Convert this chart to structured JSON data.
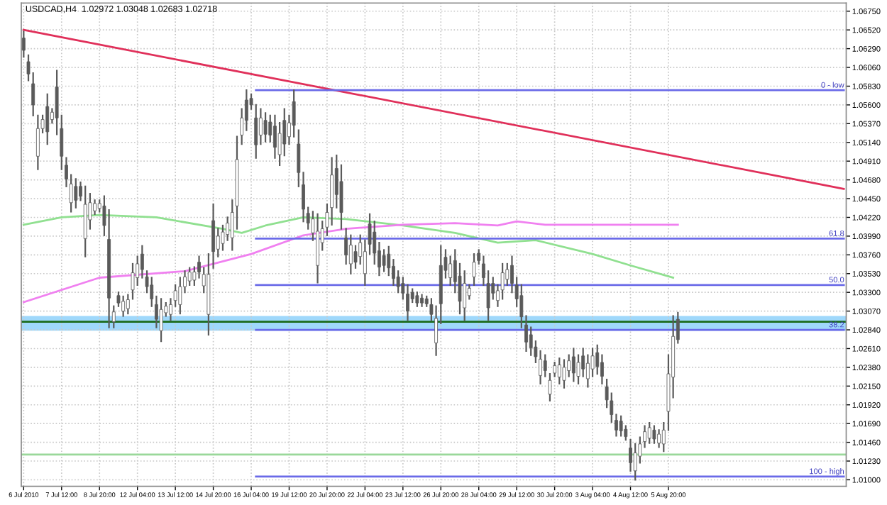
{
  "chart_data": {
    "type": "candlestick",
    "title": "USDCAD,H4  1.02972 1.03048 1.02683 1.02718",
    "color": "#5a5a5a",
    "grid": true,
    "categories": [
      "6 Jul 2010",
      null,
      null,
      null,
      null,
      null,
      null,
      null,
      "7 Jul 12:00",
      null,
      null,
      null,
      null,
      null,
      null,
      null,
      "8 Jul 20:00",
      null,
      null,
      null,
      null,
      null,
      null,
      null,
      "12 Jul 04:00",
      null,
      null,
      null,
      null,
      null,
      null,
      null,
      "13 Jul 12:00",
      null,
      null,
      null,
      null,
      null,
      null,
      null,
      "14 Jul 20:00",
      null,
      null,
      null,
      null,
      null,
      null,
      null,
      "16 Jul 04:00",
      null,
      null,
      null,
      null,
      null,
      null,
      null,
      "19 Jul 12:00",
      null,
      null,
      null,
      null,
      null,
      null,
      null,
      "20 Jul 20:00",
      null,
      null,
      null,
      null,
      null,
      null,
      null,
      "22 Jul 04:00",
      null,
      null,
      null,
      null,
      null,
      null,
      null,
      "23 Jul 12:00",
      null,
      null,
      null,
      null,
      null,
      null,
      null,
      "26 Jul 20:00",
      null,
      null,
      null,
      null,
      null,
      null,
      null,
      "28 Jul 04:00",
      null,
      null,
      null,
      null,
      null,
      null,
      null,
      "29 Jul 12:00",
      null,
      null,
      null,
      null,
      null,
      null,
      null,
      "30 Jul 20:00",
      null,
      null,
      null,
      null,
      null,
      null,
      null,
      "3 Aug 04:00",
      null,
      null,
      null,
      null,
      null,
      null,
      null,
      "4 Aug 12:00",
      null,
      null,
      null,
      null,
      null,
      null,
      null,
      "5 Aug 20:00",
      null,
      null,
      null,
      null,
      null,
      null,
      null,
      null,
      null,
      null,
      null,
      null,
      null,
      null,
      null,
      null,
      null,
      null,
      null,
      null,
      null,
      null,
      null,
      null,
      null,
      null,
      null,
      null,
      null,
      null,
      null,
      null,
      null,
      null,
      null,
      null,
      null
    ],
    "ohlc": [
      [
        1.0642,
        1.065,
        1.0619,
        1.0627
      ],
      [
        1.0613,
        1.0621,
        1.059,
        1.0598
      ],
      [
        1.0586,
        1.0599,
        1.0547,
        1.056
      ],
      [
        1.0497,
        1.0547,
        1.0481,
        1.0531
      ],
      [
        1.0531,
        1.0547,
        1.0526,
        1.0542
      ],
      [
        1.0558,
        1.0573,
        1.0512,
        1.0527
      ],
      [
        1.0542,
        1.0555,
        1.0538,
        1.0551
      ],
      [
        1.0582,
        1.0602,
        1.0524,
        1.0544
      ],
      [
        1.0531,
        1.0547,
        1.0481,
        1.0497
      ],
      [
        1.0486,
        1.0495,
        1.046,
        1.0469
      ],
      [
        1.044,
        1.0474,
        1.0429,
        1.0463
      ],
      [
        1.046,
        1.0469,
        1.0434,
        1.0443
      ],
      [
        1.046,
        1.0465,
        1.0443,
        1.0448
      ],
      [
        1.0396,
        1.046,
        1.0374,
        1.0438
      ],
      [
        1.0419,
        1.0451,
        1.0408,
        1.044
      ],
      [
        1.043,
        1.0443,
        1.0426,
        1.0439
      ],
      [
        1.0433,
        1.0443,
        1.0429,
        1.0439
      ],
      [
        1.0436,
        1.0448,
        1.04,
        1.0412
      ],
      [
        1.0395,
        1.0431,
        1.0287,
        1.0323
      ],
      [
        1.0294,
        1.0313,
        1.0287,
        1.0306
      ],
      [
        1.0326,
        1.033,
        1.0313,
        1.0317
      ],
      [
        1.0307,
        1.0325,
        1.0301,
        1.0319
      ],
      [
        1.031,
        1.0327,
        1.0304,
        1.0321
      ],
      [
        1.0333,
        1.0365,
        1.0322,
        1.0354
      ],
      [
        1.0348,
        1.0374,
        1.0339,
        1.0365
      ],
      [
        1.0377,
        1.0387,
        1.0348,
        1.0358
      ],
      [
        1.0349,
        1.0356,
        1.033,
        1.0337
      ],
      [
        1.0339,
        1.0348,
        1.0313,
        1.0322
      ],
      [
        1.0315,
        1.0325,
        1.0287,
        1.0297
      ],
      [
        1.0283,
        1.0322,
        1.027,
        1.0309
      ],
      [
        1.0305,
        1.0317,
        1.0301,
        1.0313
      ],
      [
        1.0303,
        1.0322,
        1.0296,
        1.0315
      ],
      [
        1.032,
        1.0339,
        1.0313,
        1.0332
      ],
      [
        1.0315,
        1.0348,
        1.0304,
        1.0337
      ],
      [
        1.0337,
        1.0356,
        1.033,
        1.0349
      ],
      [
        1.0344,
        1.036,
        1.0339,
        1.0355
      ],
      [
        1.0345,
        1.0361,
        1.0339,
        1.0355
      ],
      [
        1.0367,
        1.0374,
        1.0348,
        1.0355
      ],
      [
        1.0338,
        1.036,
        1.033,
        1.0352
      ],
      [
        1.0303,
        1.0377,
        1.0278,
        1.0352
      ],
      [
        1.0418,
        1.0438,
        1.036,
        1.038
      ],
      [
        1.0383,
        1.0408,
        1.0374,
        1.0399
      ],
      [
        1.039,
        1.0412,
        1.0382,
        1.0404
      ],
      [
        1.0401,
        1.0422,
        1.0394,
        1.0415
      ],
      [
        1.0397,
        1.0443,
        1.0382,
        1.0428
      ],
      [
        1.0436,
        1.0521,
        1.0408,
        1.0493
      ],
      [
        1.0523,
        1.0555,
        1.0512,
        1.0544
      ],
      [
        1.0566,
        1.0578,
        1.0529,
        1.0541
      ],
      [
        1.0568,
        1.0573,
        1.0555,
        1.056
      ],
      [
        1.0544,
        1.056,
        1.0495,
        1.0511
      ],
      [
        1.0523,
        1.0555,
        1.0512,
        1.0544
      ],
      [
        1.0541,
        1.055,
        1.0515,
        1.0524
      ],
      [
        1.0539,
        1.0547,
        1.0515,
        1.0523
      ],
      [
        1.0534,
        1.0547,
        1.0495,
        1.0508
      ],
      [
        1.0499,
        1.0538,
        1.0486,
        1.0525
      ],
      [
        1.0541,
        1.0555,
        1.0498,
        1.0512
      ],
      [
        1.0521,
        1.0547,
        1.0512,
        1.0538
      ],
      [
        1.0564,
        1.0578,
        1.0521,
        1.0535
      ],
      [
        1.0512,
        1.0529,
        1.046,
        1.0477
      ],
      [
        1.0462,
        1.0477,
        1.0417,
        1.0432
      ],
      [
        1.0427,
        1.0434,
        1.0408,
        1.0415
      ],
      [
        1.0403,
        1.0429,
        1.0394,
        1.042
      ],
      [
        1.0363,
        1.0426,
        1.0342,
        1.0405
      ],
      [
        1.0391,
        1.0417,
        1.0382,
        1.0408
      ],
      [
        1.041,
        1.0438,
        1.04,
        1.0428
      ],
      [
        1.0434,
        1.0495,
        1.0413,
        1.0474
      ],
      [
        1.0482,
        1.0498,
        1.0434,
        1.045
      ],
      [
        1.0466,
        1.0486,
        1.0408,
        1.0428
      ],
      [
        1.0397,
        1.0408,
        1.0365,
        1.0376
      ],
      [
        1.0365,
        1.04,
        1.0353,
        1.0388
      ],
      [
        1.038,
        1.0387,
        1.036,
        1.0367
      ],
      [
        1.0374,
        1.04,
        1.0365,
        1.0391
      ],
      [
        1.0353,
        1.0394,
        1.0339,
        1.038
      ],
      [
        1.0414,
        1.0426,
        1.0377,
        1.0389
      ],
      [
        1.0404,
        1.0417,
        1.0365,
        1.0378
      ],
      [
        1.0381,
        1.0391,
        1.0351,
        1.0361
      ],
      [
        1.0375,
        1.0382,
        1.0356,
        1.0363
      ],
      [
        1.0377,
        1.0386,
        1.0351,
        1.036
      ],
      [
        1.0362,
        1.037,
        1.0339,
        1.0347
      ],
      [
        1.0349,
        1.0356,
        1.033,
        1.0337
      ],
      [
        1.0341,
        1.0348,
        1.0322,
        1.0329
      ],
      [
        1.0328,
        1.0339,
        1.0296,
        1.0307
      ],
      [
        1.033,
        1.0334,
        1.0318,
        1.0322
      ],
      [
        1.0326,
        1.033,
        1.0313,
        1.0317
      ],
      [
        1.0323,
        1.0327,
        1.0313,
        1.0317
      ],
      [
        1.0322,
        1.0325,
        1.0313,
        1.0316
      ],
      [
        1.0315,
        1.0322,
        1.0296,
        1.0303
      ],
      [
        1.0268,
        1.0313,
        1.0253,
        1.0298
      ],
      [
        1.0363,
        1.0387,
        1.0292,
        1.0316
      ],
      [
        1.0373,
        1.0382,
        1.0348,
        1.0357
      ],
      [
        1.0348,
        1.0374,
        1.0339,
        1.0365
      ],
      [
        1.0369,
        1.0382,
        1.033,
        1.0343
      ],
      [
        1.035,
        1.0365,
        1.0304,
        1.0319
      ],
      [
        1.0311,
        1.0356,
        1.0296,
        1.0341
      ],
      [
        1.0326,
        1.0339,
        1.0322,
        1.0335
      ],
      [
        1.0349,
        1.0377,
        1.0339,
        1.0367
      ],
      [
        1.0378,
        1.0382,
        1.0365,
        1.0369
      ],
      [
        1.0365,
        1.0374,
        1.0339,
        1.0348
      ],
      [
        1.0341,
        1.0356,
        1.0296,
        1.0311
      ],
      [
        1.0341,
        1.0348,
        1.0322,
        1.0329
      ],
      [
        1.032,
        1.0339,
        1.0313,
        1.0332
      ],
      [
        1.0333,
        1.0365,
        1.0322,
        1.0354
      ],
      [
        1.0346,
        1.0365,
        1.0339,
        1.0358
      ],
      [
        1.0363,
        1.0374,
        1.033,
        1.0341
      ],
      [
        1.0339,
        1.0348,
        1.0313,
        1.0322
      ],
      [
        1.0326,
        1.0339,
        1.0287,
        1.03
      ],
      [
        1.029,
        1.0301,
        1.0258,
        1.0269
      ],
      [
        1.0278,
        1.0287,
        1.0253,
        1.0262
      ],
      [
        1.0263,
        1.027,
        1.0244,
        1.0251
      ],
      [
        1.0228,
        1.0258,
        1.0218,
        1.0248
      ],
      [
        1.0246,
        1.0253,
        1.0227,
        1.0234
      ],
      [
        1.0205,
        1.023,
        1.0197,
        1.0222
      ],
      [
        1.0231,
        1.0244,
        1.0227,
        1.024
      ],
      [
        1.0226,
        1.0249,
        1.0218,
        1.0241
      ],
      [
        1.0222,
        1.0247,
        1.0213,
        1.0238
      ],
      [
        1.0234,
        1.0253,
        1.0227,
        1.0246
      ],
      [
        1.0251,
        1.0261,
        1.0221,
        1.0231
      ],
      [
        1.0227,
        1.0253,
        1.0218,
        1.0244
      ],
      [
        1.0252,
        1.0261,
        1.0227,
        1.0236
      ],
      [
        1.0224,
        1.0253,
        1.0214,
        1.0243
      ],
      [
        1.0236,
        1.0261,
        1.0227,
        1.0252
      ],
      [
        1.0256,
        1.0265,
        1.023,
        1.0239
      ],
      [
        1.0244,
        1.0253,
        1.0218,
        1.0227
      ],
      [
        1.0214,
        1.0223,
        1.0189,
        1.0198
      ],
      [
        1.0197,
        1.0206,
        1.0171,
        1.018
      ],
      [
        1.0173,
        1.018,
        1.0154,
        1.0161
      ],
      [
        1.0172,
        1.0178,
        1.0154,
        1.016
      ],
      [
        1.0162,
        1.0166,
        1.0149,
        1.0153
      ],
      [
        1.0139,
        1.0149,
        1.0111,
        1.0121
      ],
      [
        1.0111,
        1.0144,
        1.01,
        1.0133
      ],
      [
        1.0129,
        1.0152,
        1.0121,
        1.0144
      ],
      [
        1.0147,
        1.0166,
        1.014,
        1.0159
      ],
      [
        1.0151,
        1.017,
        1.0145,
        1.0164
      ],
      [
        1.0161,
        1.0166,
        1.0145,
        1.015
      ],
      [
        1.0145,
        1.0161,
        1.014,
        1.0156
      ],
      [
        1.0144,
        1.017,
        1.0135,
        1.0161
      ],
      [
        1.0184,
        1.0253,
        1.0161,
        1.023
      ],
      [
        1.0226,
        1.0301,
        1.0201,
        1.0276
      ],
      [
        1.0297,
        1.0305,
        1.0268,
        1.0272
      ],
      null,
      null,
      null,
      null,
      null,
      null,
      null,
      null,
      null,
      null,
      null,
      null,
      null,
      null,
      null,
      null,
      null,
      null,
      null,
      null,
      null,
      null,
      null,
      null,
      null,
      null,
      null,
      null,
      null,
      null,
      null,
      null,
      null,
      null,
      null
    ],
    "ylim": [
      1.0092,
      1.0685
    ],
    "yticks": [
      {
        "value": 1.0675,
        "label": "1.06750"
      },
      {
        "value": 1.0652,
        "label": "1.06520"
      },
      {
        "value": 1.0629,
        "label": "1.06290"
      },
      {
        "value": 1.0606,
        "label": "1.06060"
      },
      {
        "value": 1.0583,
        "label": "1.05830"
      },
      {
        "value": 1.056,
        "label": "1.05600"
      },
      {
        "value": 1.0537,
        "label": "1.05370"
      },
      {
        "value": 1.0514,
        "label": "1.05140"
      },
      {
        "value": 1.0491,
        "label": "1.04910"
      },
      {
        "value": 1.0468,
        "label": "1.04680"
      },
      {
        "value": 1.0445,
        "label": "1.04450"
      },
      {
        "value": 1.0422,
        "label": "1.04220"
      },
      {
        "value": 1.0399,
        "label": "1.03990"
      },
      {
        "value": 1.0376,
        "label": "1.03760"
      },
      {
        "value": 1.0353,
        "label": "1.03530"
      },
      {
        "value": 1.033,
        "label": "1.03300"
      },
      {
        "value": 1.0307,
        "label": "1.03070"
      },
      {
        "value": 1.0284,
        "label": "1.02840"
      },
      {
        "value": 1.0261,
        "label": "1.02610"
      },
      {
        "value": 1.0238,
        "label": "1.02380"
      },
      {
        "value": 1.0215,
        "label": "1.02150"
      },
      {
        "value": 1.0192,
        "label": "1.01920"
      },
      {
        "value": 1.0169,
        "label": "1.01690"
      },
      {
        "value": 1.0146,
        "label": "1.01460"
      },
      {
        "value": 1.0123,
        "label": "1.01230"
      },
      {
        "value": 1.01,
        "label": "1.01000"
      }
    ],
    "series": [
      {
        "type": "line",
        "color": "#e0305a",
        "values": [
          1.0652,
          null,
          null,
          null,
          null,
          null,
          null,
          null,
          null,
          null,
          null,
          null,
          null,
          null,
          null,
          null,
          null,
          null,
          null,
          null,
          null,
          null,
          null,
          null,
          null,
          null,
          null,
          null,
          null,
          null,
          null,
          null,
          null,
          null,
          null,
          null,
          null,
          null,
          null,
          null,
          null,
          null,
          null,
          null,
          null,
          null,
          null,
          null,
          null,
          null,
          null,
          null,
          null,
          null,
          null,
          null,
          null,
          null,
          null,
          null,
          null,
          null,
          null,
          null,
          null,
          null,
          null,
          null,
          null,
          null,
          null,
          null,
          null,
          null,
          null,
          null,
          null,
          null,
          null,
          null,
          null,
          null,
          null,
          null,
          null,
          null,
          null,
          null,
          null,
          null,
          null,
          null,
          null,
          null,
          null,
          null,
          null,
          null,
          null,
          null,
          null,
          null,
          null,
          null,
          null,
          null,
          null,
          null,
          null,
          null,
          null,
          null,
          null,
          null,
          null,
          null,
          null,
          null,
          null,
          null,
          null,
          null,
          null,
          null,
          null,
          null,
          null,
          null,
          null,
          null,
          null,
          null,
          null,
          null,
          null,
          null,
          null,
          null,
          null,
          null,
          null,
          null,
          null,
          null,
          null,
          null,
          null,
          null,
          null,
          null,
          null,
          null,
          null,
          null,
          null,
          null,
          null,
          null,
          null,
          null,
          null,
          null,
          null,
          null,
          null,
          null,
          null,
          null,
          null,
          null,
          null,
          null,
          null,
          1.0457
        ]
      },
      {
        "type": "line",
        "color": "#90e090",
        "values": [
          1.0413,
          null,
          null,
          null,
          null,
          null,
          null,
          null,
          1.0422,
          null,
          null,
          null,
          null,
          null,
          null,
          null,
          1.0425,
          null,
          null,
          null,
          null,
          null,
          null,
          null,
          null,
          null,
          null,
          null,
          1.0422,
          null,
          null,
          null,
          null,
          null,
          null,
          null,
          null,
          null,
          null,
          null,
          null,
          null,
          1.0408,
          null,
          null,
          null,
          1.0403,
          null,
          null,
          null,
          null,
          1.0412,
          null,
          null,
          null,
          null,
          null,
          null,
          null,
          1.0422,
          null,
          null,
          null,
          null,
          null,
          null,
          null,
          null,
          1.042,
          null,
          null,
          null,
          null,
          null,
          null,
          null,
          null,
          null,
          null,
          null,
          1.0412,
          null,
          null,
          null,
          null,
          null,
          null,
          null,
          null,
          null,
          null,
          1.0403,
          null,
          null,
          null,
          null,
          null,
          null,
          null,
          null,
          1.0391,
          null,
          null,
          null,
          null,
          null,
          null,
          null,
          1.0394,
          null,
          null,
          null,
          null,
          null,
          null,
          null,
          null,
          null,
          null,
          null,
          1.0377,
          null,
          null,
          null,
          null,
          null,
          null,
          null,
          1.0363,
          null,
          null,
          null,
          null,
          null,
          null,
          null,
          null,
          1.0348,
          null,
          null,
          null,
          null,
          null,
          null,
          null,
          null,
          null,
          null,
          null,
          null,
          null,
          null,
          null,
          null,
          null,
          null,
          null,
          null,
          null,
          null,
          null,
          null,
          null,
          null,
          null,
          null,
          null,
          null,
          null,
          null,
          null,
          null,
          null,
          null
        ]
      },
      {
        "type": "line",
        "color": "#f080f0",
        "values": [
          1.0318,
          null,
          null,
          null,
          null,
          null,
          null,
          null,
          null,
          null,
          null,
          null,
          null,
          null,
          null,
          null,
          1.0348,
          null,
          null,
          null,
          null,
          null,
          null,
          null,
          null,
          null,
          null,
          null,
          null,
          null,
          null,
          null,
          null,
          null,
          1.0356,
          null,
          null,
          null,
          null,
          null,
          null,
          null,
          null,
          null,
          null,
          null,
          null,
          null,
          1.0377,
          null,
          null,
          null,
          null,
          null,
          null,
          null,
          null,
          null,
          null,
          1.04,
          null,
          null,
          null,
          null,
          null,
          null,
          null,
          null,
          1.0408,
          null,
          null,
          null,
          null,
          null,
          null,
          null,
          null,
          null,
          null,
          null,
          1.0413,
          null,
          null,
          null,
          null,
          null,
          null,
          null,
          null,
          null,
          null,
          1.0415,
          null,
          null,
          null,
          null,
          null,
          null,
          null,
          null,
          1.0412,
          null,
          null,
          null,
          1.0417,
          null,
          null,
          null,
          null,
          null,
          1.0413,
          null,
          null,
          null,
          null,
          null,
          null,
          null,
          null,
          null,
          null,
          null,
          null,
          null,
          null,
          null,
          null,
          null,
          null,
          null,
          null,
          null,
          null,
          null,
          null,
          null,
          null,
          null,
          1.0413,
          null,
          null,
          null,
          null,
          null,
          null,
          null,
          null,
          null,
          null,
          null,
          null,
          null,
          null,
          null,
          null,
          null,
          null,
          null,
          null,
          null,
          null,
          null,
          null,
          null,
          null,
          null,
          null,
          null,
          null,
          null,
          null,
          null,
          null,
          null
        ]
      },
      {
        "type": "line",
        "color": "#6a6ae8",
        "values": [
          null,
          null,
          null,
          null,
          null,
          null,
          null,
          null,
          null,
          null,
          null,
          null,
          null,
          null,
          null,
          null,
          null,
          null,
          null,
          null,
          null,
          null,
          null,
          null,
          null,
          null,
          null,
          null,
          null,
          null,
          null,
          null,
          null,
          null,
          null,
          null,
          null,
          null,
          null,
          null,
          null,
          null,
          null,
          null,
          null,
          null,
          null,
          null,
          null,
          1.0578,
          null,
          null,
          null,
          null,
          null,
          null,
          null,
          null,
          null,
          null,
          null,
          null,
          null,
          null,
          null,
          null,
          null,
          null,
          null,
          null,
          null,
          null,
          null,
          null,
          null,
          null,
          null,
          null,
          null,
          null,
          null,
          null,
          null,
          null,
          null,
          null,
          null,
          null,
          null,
          null,
          null,
          null,
          null,
          null,
          null,
          null,
          null,
          null,
          null,
          null,
          null,
          null,
          null,
          null,
          null,
          null,
          null,
          null,
          null,
          null,
          null,
          null,
          null,
          null,
          null,
          null,
          null,
          null,
          null,
          null,
          null,
          null,
          null,
          null,
          null,
          null,
          null,
          null,
          null,
          null,
          null,
          null,
          null,
          null,
          null,
          null,
          null,
          null,
          null,
          null,
          null,
          null,
          null,
          null,
          null,
          null,
          null,
          null,
          null,
          null,
          null,
          null,
          null,
          null,
          null,
          null,
          null,
          null,
          null,
          null,
          null,
          null,
          null,
          null,
          null,
          null,
          null,
          null,
          null,
          null,
          null,
          null,
          null,
          1.0578
        ]
      },
      {
        "type": "line",
        "color": "#6a6ae8",
        "values": [
          null,
          null,
          null,
          null,
          null,
          null,
          null,
          null,
          null,
          null,
          null,
          null,
          null,
          null,
          null,
          null,
          null,
          null,
          null,
          null,
          null,
          null,
          null,
          null,
          null,
          null,
          null,
          null,
          null,
          null,
          null,
          null,
          null,
          null,
          null,
          null,
          null,
          null,
          null,
          null,
          null,
          null,
          null,
          null,
          null,
          null,
          null,
          null,
          null,
          1.0396,
          null,
          null,
          null,
          null,
          null,
          null,
          null,
          null,
          null,
          null,
          null,
          null,
          null,
          null,
          null,
          null,
          null,
          null,
          null,
          null,
          null,
          null,
          null,
          null,
          null,
          null,
          null,
          null,
          null,
          null,
          null,
          null,
          null,
          null,
          null,
          null,
          null,
          null,
          null,
          null,
          null,
          null,
          null,
          null,
          null,
          null,
          null,
          null,
          null,
          null,
          null,
          null,
          null,
          null,
          null,
          null,
          null,
          null,
          null,
          null,
          null,
          null,
          null,
          null,
          null,
          null,
          null,
          null,
          null,
          null,
          null,
          null,
          null,
          null,
          null,
          null,
          null,
          null,
          null,
          null,
          null,
          null,
          null,
          null,
          null,
          null,
          null,
          null,
          null,
          null,
          null,
          null,
          null,
          null,
          null,
          null,
          null,
          null,
          null,
          null,
          null,
          null,
          null,
          null,
          null,
          null,
          null,
          null,
          null,
          null,
          null,
          null,
          null,
          null,
          null,
          null,
          null,
          null,
          null,
          null,
          null,
          null,
          null,
          1.0396
        ]
      },
      {
        "type": "line",
        "color": "#6a6ae8",
        "values": [
          null,
          null,
          null,
          null,
          null,
          null,
          null,
          null,
          null,
          null,
          null,
          null,
          null,
          null,
          null,
          null,
          null,
          null,
          null,
          null,
          null,
          null,
          null,
          null,
          null,
          null,
          null,
          null,
          null,
          null,
          null,
          null,
          null,
          null,
          null,
          null,
          null,
          null,
          null,
          null,
          null,
          null,
          null,
          null,
          null,
          null,
          null,
          null,
          null,
          1.0339,
          null,
          null,
          null,
          null,
          null,
          null,
          null,
          null,
          null,
          null,
          null,
          null,
          null,
          null,
          null,
          null,
          null,
          null,
          null,
          null,
          null,
          null,
          null,
          null,
          null,
          null,
          null,
          null,
          null,
          null,
          null,
          null,
          null,
          null,
          null,
          null,
          null,
          null,
          null,
          null,
          null,
          null,
          null,
          null,
          null,
          null,
          null,
          null,
          null,
          null,
          null,
          null,
          null,
          null,
          null,
          null,
          null,
          null,
          null,
          null,
          null,
          null,
          null,
          null,
          null,
          null,
          null,
          null,
          null,
          null,
          null,
          null,
          null,
          null,
          null,
          null,
          null,
          null,
          null,
          null,
          null,
          null,
          null,
          null,
          null,
          null,
          null,
          null,
          null,
          null,
          null,
          null,
          null,
          null,
          null,
          null,
          null,
          null,
          null,
          null,
          null,
          null,
          null,
          null,
          null,
          null,
          null,
          null,
          null,
          null,
          null,
          null,
          null,
          null,
          null,
          null,
          null,
          null,
          null,
          null,
          null,
          null,
          null,
          1.0339
        ]
      },
      {
        "type": "line",
        "color": "#6a6ae8",
        "values": [
          null,
          null,
          null,
          null,
          null,
          null,
          null,
          null,
          null,
          null,
          null,
          null,
          null,
          null,
          null,
          null,
          null,
          null,
          null,
          null,
          null,
          null,
          null,
          null,
          null,
          null,
          null,
          null,
          null,
          null,
          null,
          null,
          null,
          null,
          null,
          null,
          null,
          null,
          null,
          null,
          null,
          null,
          null,
          null,
          null,
          null,
          null,
          null,
          null,
          1.0284,
          null,
          null,
          null,
          null,
          null,
          null,
          null,
          null,
          null,
          null,
          null,
          null,
          null,
          null,
          null,
          null,
          null,
          null,
          null,
          null,
          null,
          null,
          null,
          null,
          null,
          null,
          null,
          null,
          null,
          null,
          null,
          null,
          null,
          null,
          null,
          null,
          null,
          null,
          null,
          null,
          null,
          null,
          null,
          null,
          null,
          null,
          null,
          null,
          null,
          null,
          null,
          null,
          null,
          null,
          null,
          null,
          null,
          null,
          null,
          null,
          null,
          null,
          null,
          null,
          null,
          null,
          null,
          null,
          null,
          null,
          null,
          null,
          null,
          null,
          null,
          null,
          null,
          null,
          null,
          null,
          null,
          null,
          null,
          null,
          null,
          null,
          null,
          null,
          null,
          null,
          null,
          null,
          null,
          null,
          null,
          null,
          null,
          null,
          null,
          null,
          null,
          null,
          null,
          null,
          null,
          null,
          null,
          null,
          null,
          null,
          null,
          null,
          null,
          null,
          null,
          null,
          null,
          null,
          null,
          null,
          null,
          null,
          null,
          1.0284
        ]
      },
      {
        "type": "line",
        "color": "#6a6ae8",
        "values": [
          null,
          null,
          null,
          null,
          null,
          null,
          null,
          null,
          null,
          null,
          null,
          null,
          null,
          null,
          null,
          null,
          null,
          null,
          null,
          null,
          null,
          null,
          null,
          null,
          null,
          null,
          null,
          null,
          null,
          null,
          null,
          null,
          null,
          null,
          null,
          null,
          null,
          null,
          null,
          null,
          null,
          null,
          null,
          null,
          null,
          null,
          null,
          null,
          null,
          1.0104,
          null,
          null,
          null,
          null,
          null,
          null,
          null,
          null,
          null,
          null,
          null,
          null,
          null,
          null,
          null,
          null,
          null,
          null,
          null,
          null,
          null,
          null,
          null,
          null,
          null,
          null,
          null,
          null,
          null,
          null,
          null,
          null,
          null,
          null,
          null,
          null,
          null,
          null,
          null,
          null,
          null,
          null,
          null,
          null,
          null,
          null,
          null,
          null,
          null,
          null,
          null,
          null,
          null,
          null,
          null,
          null,
          null,
          null,
          null,
          null,
          null,
          null,
          null,
          null,
          null,
          null,
          null,
          null,
          null,
          null,
          null,
          null,
          null,
          null,
          null,
          null,
          null,
          null,
          null,
          null,
          null,
          null,
          null,
          null,
          null,
          null,
          null,
          null,
          null,
          null,
          null,
          null,
          null,
          null,
          null,
          null,
          null,
          null,
          null,
          null,
          null,
          null,
          null,
          null,
          null,
          null,
          null,
          null,
          null,
          null,
          null,
          null,
          null,
          null,
          null,
          null,
          null,
          null,
          null,
          null,
          null,
          null,
          null,
          1.0104
        ]
      }
    ],
    "bands": [
      {
        "axis": "y",
        "from": 1.0283,
        "to": 1.0301,
        "color": "#87cefa"
      }
    ],
    "ref_lines": [
      {
        "axis": "y",
        "value": 1.0294,
        "color": "#1a6a1a"
      },
      {
        "axis": "y",
        "value": 1.0131,
        "color": "#9ad89a"
      }
    ],
    "annotations": [
      {
        "text": "0 - low",
        "y": 1.0578
      },
      {
        "text": "61.8",
        "y": 1.0396
      },
      {
        "text": "50.0",
        "y": 1.0339
      },
      {
        "text": "38.2",
        "y": 1.0284
      },
      {
        "text": "100 - high",
        "y": 1.0104
      }
    ]
  }
}
